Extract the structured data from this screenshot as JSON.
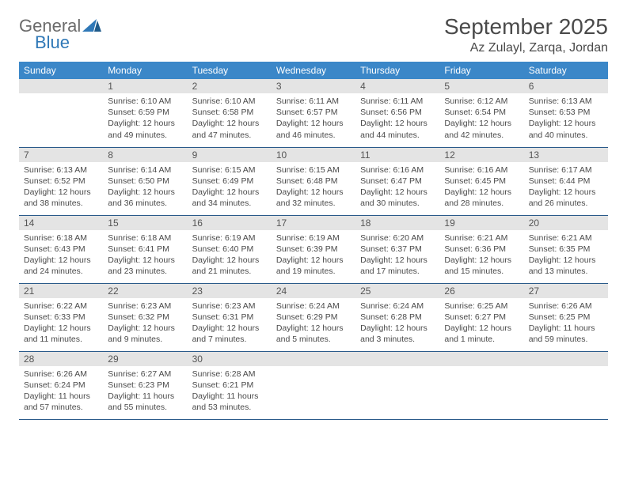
{
  "logo": {
    "word1": "General",
    "word2": "Blue"
  },
  "title": "September 2025",
  "location": "Az Zulayl, Zarqa, Jordan",
  "colors": {
    "header_bg": "#3b87c8",
    "header_text": "#ffffff",
    "daynum_bg": "#e4e4e4",
    "rule": "#2a5a8a",
    "text": "#4a4a4a",
    "logo_gray": "#6b6b6b",
    "logo_blue": "#2f78b7"
  },
  "weekdays": [
    "Sunday",
    "Monday",
    "Tuesday",
    "Wednesday",
    "Thursday",
    "Friday",
    "Saturday"
  ],
  "weeks": [
    [
      null,
      {
        "n": "1",
        "sr": "Sunrise: 6:10 AM",
        "ss": "Sunset: 6:59 PM",
        "d1": "Daylight: 12 hours",
        "d2": "and 49 minutes."
      },
      {
        "n": "2",
        "sr": "Sunrise: 6:10 AM",
        "ss": "Sunset: 6:58 PM",
        "d1": "Daylight: 12 hours",
        "d2": "and 47 minutes."
      },
      {
        "n": "3",
        "sr": "Sunrise: 6:11 AM",
        "ss": "Sunset: 6:57 PM",
        "d1": "Daylight: 12 hours",
        "d2": "and 46 minutes."
      },
      {
        "n": "4",
        "sr": "Sunrise: 6:11 AM",
        "ss": "Sunset: 6:56 PM",
        "d1": "Daylight: 12 hours",
        "d2": "and 44 minutes."
      },
      {
        "n": "5",
        "sr": "Sunrise: 6:12 AM",
        "ss": "Sunset: 6:54 PM",
        "d1": "Daylight: 12 hours",
        "d2": "and 42 minutes."
      },
      {
        "n": "6",
        "sr": "Sunrise: 6:13 AM",
        "ss": "Sunset: 6:53 PM",
        "d1": "Daylight: 12 hours",
        "d2": "and 40 minutes."
      }
    ],
    [
      {
        "n": "7",
        "sr": "Sunrise: 6:13 AM",
        "ss": "Sunset: 6:52 PM",
        "d1": "Daylight: 12 hours",
        "d2": "and 38 minutes."
      },
      {
        "n": "8",
        "sr": "Sunrise: 6:14 AM",
        "ss": "Sunset: 6:50 PM",
        "d1": "Daylight: 12 hours",
        "d2": "and 36 minutes."
      },
      {
        "n": "9",
        "sr": "Sunrise: 6:15 AM",
        "ss": "Sunset: 6:49 PM",
        "d1": "Daylight: 12 hours",
        "d2": "and 34 minutes."
      },
      {
        "n": "10",
        "sr": "Sunrise: 6:15 AM",
        "ss": "Sunset: 6:48 PM",
        "d1": "Daylight: 12 hours",
        "d2": "and 32 minutes."
      },
      {
        "n": "11",
        "sr": "Sunrise: 6:16 AM",
        "ss": "Sunset: 6:47 PM",
        "d1": "Daylight: 12 hours",
        "d2": "and 30 minutes."
      },
      {
        "n": "12",
        "sr": "Sunrise: 6:16 AM",
        "ss": "Sunset: 6:45 PM",
        "d1": "Daylight: 12 hours",
        "d2": "and 28 minutes."
      },
      {
        "n": "13",
        "sr": "Sunrise: 6:17 AM",
        "ss": "Sunset: 6:44 PM",
        "d1": "Daylight: 12 hours",
        "d2": "and 26 minutes."
      }
    ],
    [
      {
        "n": "14",
        "sr": "Sunrise: 6:18 AM",
        "ss": "Sunset: 6:43 PM",
        "d1": "Daylight: 12 hours",
        "d2": "and 24 minutes."
      },
      {
        "n": "15",
        "sr": "Sunrise: 6:18 AM",
        "ss": "Sunset: 6:41 PM",
        "d1": "Daylight: 12 hours",
        "d2": "and 23 minutes."
      },
      {
        "n": "16",
        "sr": "Sunrise: 6:19 AM",
        "ss": "Sunset: 6:40 PM",
        "d1": "Daylight: 12 hours",
        "d2": "and 21 minutes."
      },
      {
        "n": "17",
        "sr": "Sunrise: 6:19 AM",
        "ss": "Sunset: 6:39 PM",
        "d1": "Daylight: 12 hours",
        "d2": "and 19 minutes."
      },
      {
        "n": "18",
        "sr": "Sunrise: 6:20 AM",
        "ss": "Sunset: 6:37 PM",
        "d1": "Daylight: 12 hours",
        "d2": "and 17 minutes."
      },
      {
        "n": "19",
        "sr": "Sunrise: 6:21 AM",
        "ss": "Sunset: 6:36 PM",
        "d1": "Daylight: 12 hours",
        "d2": "and 15 minutes."
      },
      {
        "n": "20",
        "sr": "Sunrise: 6:21 AM",
        "ss": "Sunset: 6:35 PM",
        "d1": "Daylight: 12 hours",
        "d2": "and 13 minutes."
      }
    ],
    [
      {
        "n": "21",
        "sr": "Sunrise: 6:22 AM",
        "ss": "Sunset: 6:33 PM",
        "d1": "Daylight: 12 hours",
        "d2": "and 11 minutes."
      },
      {
        "n": "22",
        "sr": "Sunrise: 6:23 AM",
        "ss": "Sunset: 6:32 PM",
        "d1": "Daylight: 12 hours",
        "d2": "and 9 minutes."
      },
      {
        "n": "23",
        "sr": "Sunrise: 6:23 AM",
        "ss": "Sunset: 6:31 PM",
        "d1": "Daylight: 12 hours",
        "d2": "and 7 minutes."
      },
      {
        "n": "24",
        "sr": "Sunrise: 6:24 AM",
        "ss": "Sunset: 6:29 PM",
        "d1": "Daylight: 12 hours",
        "d2": "and 5 minutes."
      },
      {
        "n": "25",
        "sr": "Sunrise: 6:24 AM",
        "ss": "Sunset: 6:28 PM",
        "d1": "Daylight: 12 hours",
        "d2": "and 3 minutes."
      },
      {
        "n": "26",
        "sr": "Sunrise: 6:25 AM",
        "ss": "Sunset: 6:27 PM",
        "d1": "Daylight: 12 hours",
        "d2": "and 1 minute."
      },
      {
        "n": "27",
        "sr": "Sunrise: 6:26 AM",
        "ss": "Sunset: 6:25 PM",
        "d1": "Daylight: 11 hours",
        "d2": "and 59 minutes."
      }
    ],
    [
      {
        "n": "28",
        "sr": "Sunrise: 6:26 AM",
        "ss": "Sunset: 6:24 PM",
        "d1": "Daylight: 11 hours",
        "d2": "and 57 minutes."
      },
      {
        "n": "29",
        "sr": "Sunrise: 6:27 AM",
        "ss": "Sunset: 6:23 PM",
        "d1": "Daylight: 11 hours",
        "d2": "and 55 minutes."
      },
      {
        "n": "30",
        "sr": "Sunrise: 6:28 AM",
        "ss": "Sunset: 6:21 PM",
        "d1": "Daylight: 11 hours",
        "d2": "and 53 minutes."
      },
      null,
      null,
      null,
      null
    ]
  ]
}
